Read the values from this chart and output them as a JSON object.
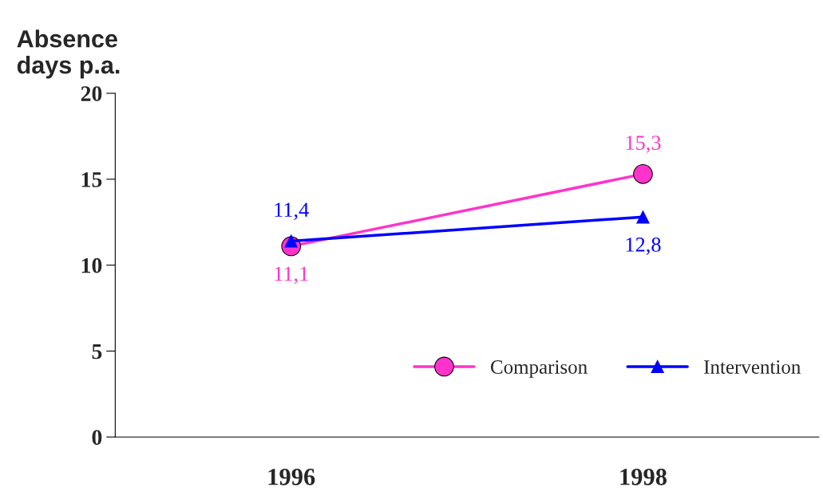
{
  "chart_data": {
    "type": "line",
    "ylabel": "Absence\ndays p.a.",
    "categories": [
      "1996",
      "1998"
    ],
    "ylim": [
      0,
      20
    ],
    "yticks": [
      0,
      5,
      10,
      15,
      20
    ],
    "grid": false,
    "legend": "bottom right",
    "line_style": "solid",
    "series": [
      {
        "name": "Comparison",
        "color": "#ff33cc",
        "marker": "circle",
        "values": [
          11.1,
          15.3
        ],
        "value_labels": [
          "11,1",
          "15,3"
        ]
      },
      {
        "name": "Intervention",
        "color": "#0000ff",
        "marker": "triangle",
        "values": [
          11.4,
          12.8
        ],
        "value_labels": [
          "11,4",
          "12,8"
        ]
      }
    ]
  }
}
